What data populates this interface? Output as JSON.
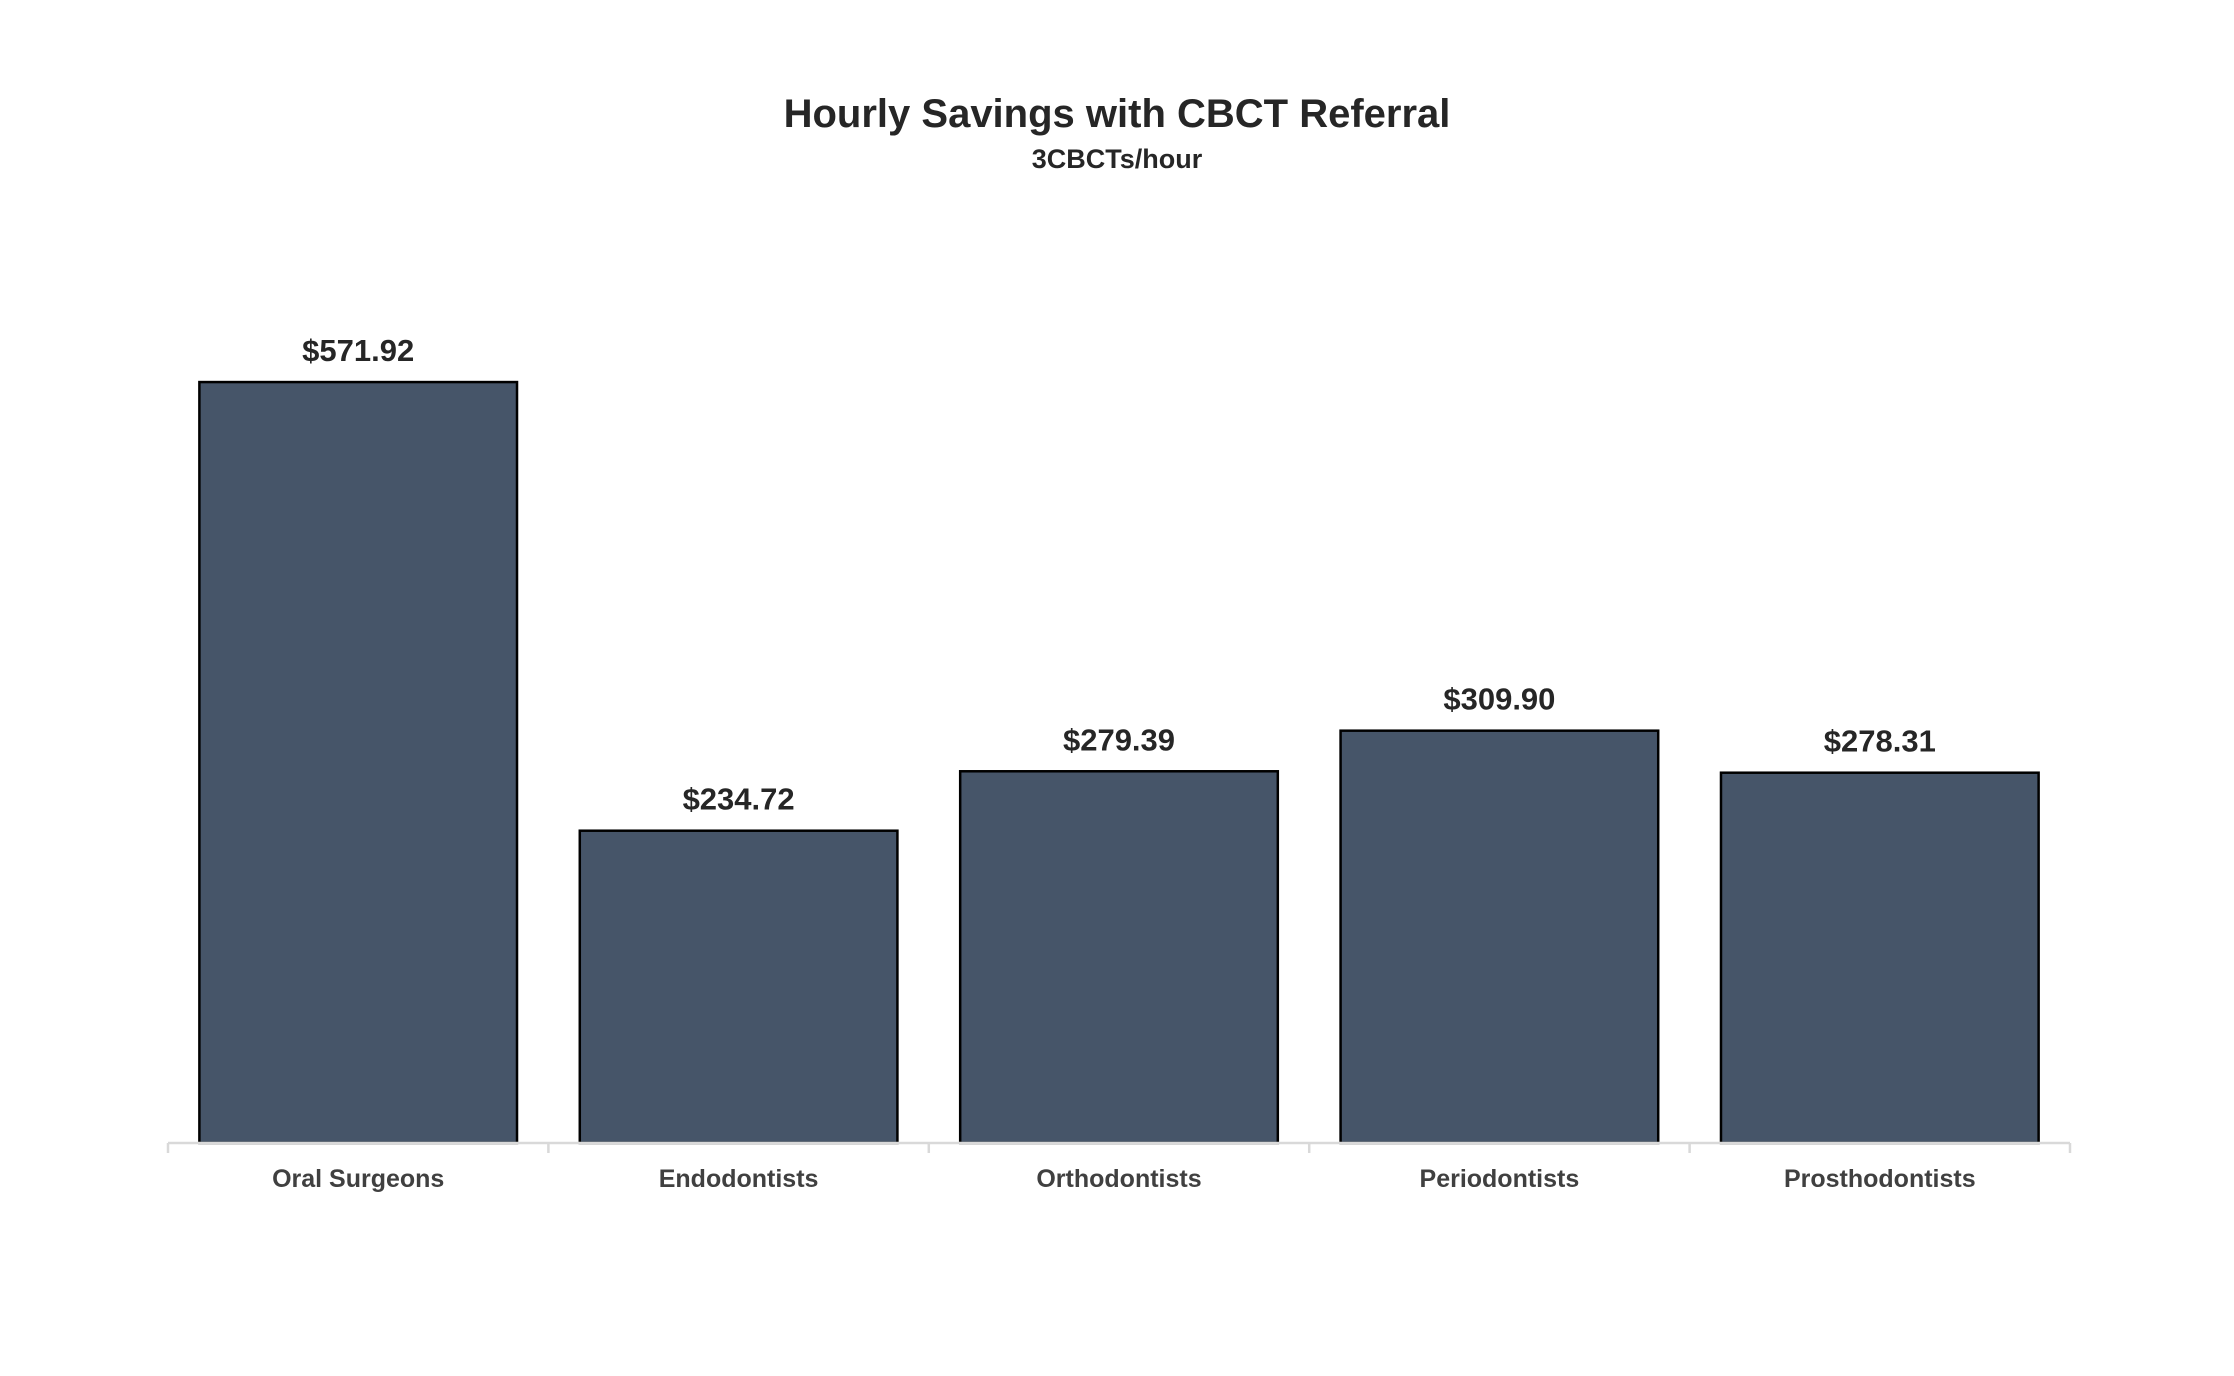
{
  "chart_data": {
    "type": "bar",
    "title": "Hourly Savings with CBCT Referral",
    "subtitle": "3CBCTs/hour",
    "categories": [
      "Oral Surgeons",
      "Endodontists",
      "Orthodontists",
      "Periodontists",
      "Prosthodontists"
    ],
    "values": [
      571.92,
      234.72,
      279.39,
      309.9,
      278.31
    ],
    "data_labels": [
      "$571.92",
      "$234.72",
      "$279.39",
      "$309.90",
      "$278.31"
    ],
    "xlabel": "",
    "ylabel": "",
    "ylim": [
      0,
      600
    ],
    "grid": false,
    "legend": "none",
    "colors": {
      "bar_fill": "#465569",
      "bar_outline": "#000000",
      "axis": "#d9d9d9",
      "text": "#262626",
      "tick_text": "#404040"
    }
  }
}
